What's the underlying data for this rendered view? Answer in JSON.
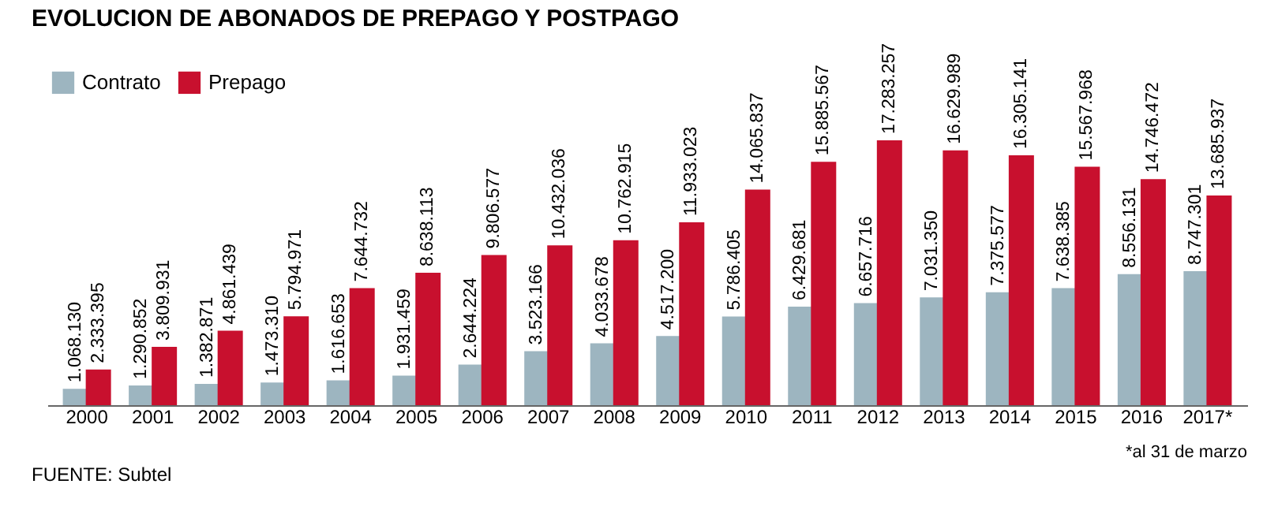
{
  "chart_data": {
    "type": "bar",
    "title": "EVOLUCION DE ABONADOS DE PREPAGO Y POSTPAGO",
    "categories": [
      "2000",
      "2001",
      "2002",
      "2003",
      "2004",
      "2005",
      "2006",
      "2007",
      "2008",
      "2009",
      "2010",
      "2011",
      "2012",
      "2013",
      "2014",
      "2015",
      "2016",
      "2017*"
    ],
    "series": [
      {
        "name": "Contrato",
        "color": "#9db5c0",
        "values": [
          1068130,
          1290852,
          1382871,
          1473310,
          1616653,
          1931459,
          2644224,
          3523166,
          4033678,
          4517200,
          5786405,
          6429681,
          6657716,
          7031350,
          7375577,
          7638385,
          8556131,
          8747301
        ],
        "value_labels": [
          "1.068.130",
          "1.290.852",
          "1.382.871",
          "1.473.310",
          "1.616.653",
          "1.931.459",
          "2.644.224",
          "3.523.166",
          "4.033.678",
          "4.517.200",
          "5.786.405",
          "6.429.681",
          "6.657.716",
          "7.031.350",
          "7.375.577",
          "7.638.385",
          "8.556.131",
          "8.747.301"
        ]
      },
      {
        "name": "Prepago",
        "color": "#c8102e",
        "values": [
          2333395,
          3809931,
          4861439,
          5794971,
          7644732,
          8638113,
          9806577,
          10432036,
          10762915,
          11933023,
          14065837,
          15885567,
          17283257,
          16629989,
          16305141,
          15567968,
          14746472,
          13685937
        ],
        "value_labels": [
          "2.333.395",
          "3.809.931",
          "4.861.439",
          "5.794.971",
          "7.644.732",
          "8.638.113",
          "9.806.577",
          "10.432.036",
          "10.762.915",
          "11.933.023",
          "14.065.837",
          "15.885.567",
          "17.283.257",
          "16.629.989",
          "16.305.141",
          "15.567.968",
          "14.746.472",
          "13.685.937"
        ]
      }
    ],
    "legend": "top left",
    "grid": false,
    "annotations": [
      "*al 31 de marzo",
      "FUENTE: Subtel"
    ]
  }
}
